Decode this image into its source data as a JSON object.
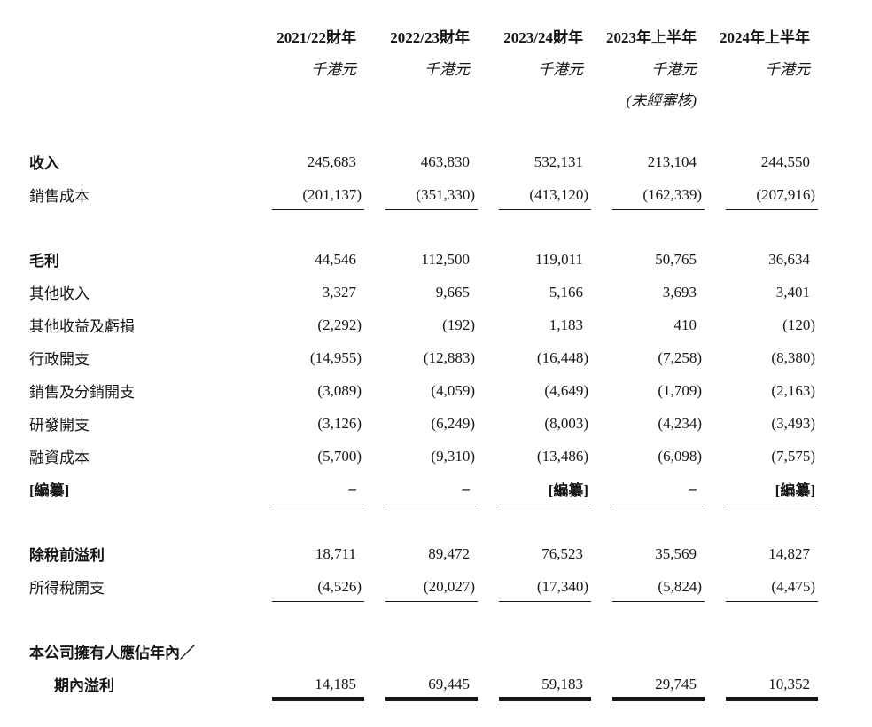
{
  "document": {
    "kind": "consolidated-statement-of-profit-or-loss",
    "currency_unit": "千港元",
    "columns": [
      {
        "period": "2021/22財年",
        "unit": "千港元",
        "note": ""
      },
      {
        "period": "2022/23財年",
        "unit": "千港元",
        "note": ""
      },
      {
        "period": "2023/24財年",
        "unit": "千港元",
        "note": ""
      },
      {
        "period": "2023年上半年",
        "unit": "千港元",
        "note": "(未經審核)"
      },
      {
        "period": "2024年上半年",
        "unit": "千港元",
        "note": ""
      }
    ],
    "rows": [
      {
        "label": "收入",
        "values": [
          "245,683",
          "463,830",
          "532,131",
          "213,104",
          "244,550"
        ]
      },
      {
        "label": "銷售成本",
        "values": [
          "(201,137)",
          "(351,330)",
          "(413,120)",
          "(162,339)",
          "(207,916)"
        ]
      },
      {
        "label": "毛利",
        "values": [
          "44,546",
          "112,500",
          "119,011",
          "50,765",
          "36,634"
        ]
      },
      {
        "label": "其他收入",
        "values": [
          "3,327",
          "9,665",
          "5,166",
          "3,693",
          "3,401"
        ]
      },
      {
        "label": "其他收益及虧損",
        "values": [
          "(2,292)",
          "(192)",
          "1,183",
          "410",
          "(120)"
        ]
      },
      {
        "label": "行政開支",
        "values": [
          "(14,955)",
          "(12,883)",
          "(16,448)",
          "(7,258)",
          "(8,380)"
        ]
      },
      {
        "label": "銷售及分銷開支",
        "values": [
          "(3,089)",
          "(4,059)",
          "(4,649)",
          "(1,709)",
          "(2,163)"
        ]
      },
      {
        "label": "研發開支",
        "values": [
          "(3,126)",
          "(6,249)",
          "(8,003)",
          "(4,234)",
          "(3,493)"
        ]
      },
      {
        "label": "融資成本",
        "values": [
          "(5,700)",
          "(9,310)",
          "(13,486)",
          "(6,098)",
          "(7,575)"
        ]
      },
      {
        "label": "[編纂]",
        "values": [
          "–",
          "–",
          "[編纂]",
          "–",
          "[編纂]"
        ]
      },
      {
        "label": "除稅前溢利",
        "values": [
          "18,711",
          "89,472",
          "76,523",
          "35,569",
          "14,827"
        ]
      },
      {
        "label": "所得稅開支",
        "values": [
          "(4,526)",
          "(20,027)",
          "(17,340)",
          "(5,824)",
          "(4,475)"
        ]
      },
      {
        "label": "本公司擁有人應佔年內／"
      },
      {
        "label": "期內溢利",
        "values": [
          "14,185",
          "69,445",
          "59,183",
          "29,745",
          "10,352"
        ]
      }
    ],
    "colors": {
      "text": "#161616",
      "background": "#ffffff",
      "rule": "#161616"
    }
  }
}
